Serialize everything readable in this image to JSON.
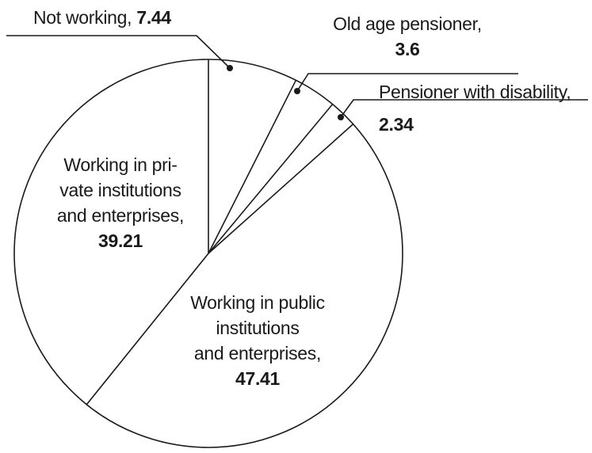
{
  "chart_data": {
    "type": "pie",
    "title": "",
    "fill": "none",
    "stroke_color": "#1a1a1a",
    "start_angle": "12 o'clock",
    "direction": "clockwise",
    "slices": [
      {
        "label": "Not working",
        "value": 7.44
      },
      {
        "label": "Old age pensioner",
        "value": 3.6
      },
      {
        "label": "Pensioner with disability",
        "value": 2.34
      },
      {
        "label": "Working in public institutions and enterprises",
        "value": 47.41
      },
      {
        "label": "Working in private institutions and enterprises",
        "value": 39.21
      }
    ],
    "legend": "none",
    "labels_style": "callouts for small slices, inside labels for large slices"
  },
  "labels": {
    "not_working": {
      "name": "Not working,",
      "value": "7.44"
    },
    "old_age": {
      "name": "Old age pensioner,",
      "value": "3.6"
    },
    "disability": {
      "name": "Pensioner with disability,",
      "value": "2.34"
    },
    "private": {
      "line1": "Working in pri-",
      "line2": "vate institutions",
      "line3": "and enterprises,",
      "value": "39.21"
    },
    "public": {
      "line1": "Working in public",
      "line2": "institutions",
      "line3": "and enterprises,",
      "value": "47.41"
    }
  }
}
